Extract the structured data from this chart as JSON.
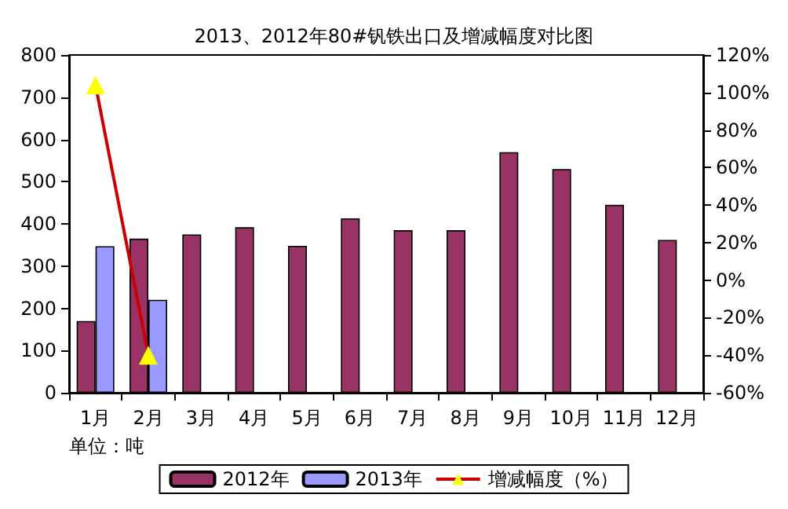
{
  "chart_data": {
    "type": "bar",
    "title": "2013、2012年80#钒铁出口及增减幅度对比图",
    "annotations": [
      "单位：吨"
    ],
    "categories": [
      "1月",
      "2月",
      "3月",
      "4月",
      "5月",
      "6月",
      "7月",
      "8月",
      "9月",
      "10月",
      "11月",
      "12月"
    ],
    "series": [
      {
        "name": "2012年",
        "color": "#993366",
        "values": [
          170,
          365,
          375,
          392,
          348,
          413,
          385,
          385,
          570,
          530,
          445,
          362
        ]
      },
      {
        "name": "2013年",
        "color": "#9999ff",
        "values": [
          347,
          220,
          null,
          null,
          null,
          null,
          null,
          null,
          null,
          null,
          null,
          null
        ]
      },
      {
        "name": "增减幅度（%）",
        "type": "line",
        "axis": "y2",
        "color": "#cc0000",
        "marker": "triangle",
        "values": [
          104,
          -40,
          null,
          null,
          null,
          null,
          null,
          null,
          null,
          null,
          null,
          null
        ]
      }
    ],
    "ylim": [
      0,
      800
    ],
    "yticks": [
      0,
      100,
      200,
      300,
      400,
      500,
      600,
      700,
      800
    ],
    "y2lim": [
      -60,
      120
    ],
    "y2ticks": [
      {
        "value": -60,
        "label": "-60%"
      },
      {
        "value": -40,
        "label": "-40%"
      },
      {
        "value": -20,
        "label": "-20%"
      },
      {
        "value": 0,
        "label": "0%"
      },
      {
        "value": 20,
        "label": "20%"
      },
      {
        "value": 40,
        "label": "40%"
      },
      {
        "value": 60,
        "label": "60%"
      },
      {
        "value": 80,
        "label": "80%"
      },
      {
        "value": 100,
        "label": "100%"
      },
      {
        "value": 120,
        "label": "120%"
      }
    ],
    "grid": false,
    "legend": "bottom"
  }
}
